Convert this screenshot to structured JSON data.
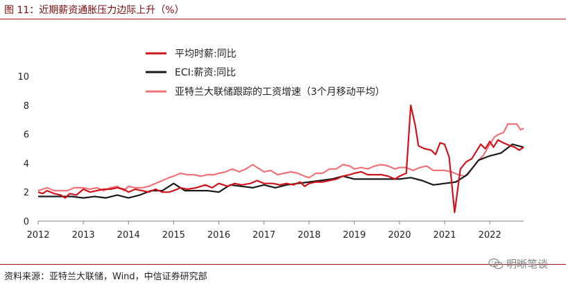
{
  "header": {
    "title": "图 11：近期薪资通胀压力边际上升（%）"
  },
  "footer": {
    "source": "资料来源：亚特兰大联储，Wind，中信证券研究部"
  },
  "watermark": {
    "text": "明晰笔谈",
    "icon": "wechat-icon"
  },
  "colors": {
    "rule": "#9b1b1b",
    "series1": "#d0121b",
    "series2": "#1a1a1a",
    "series3": "#f2707a"
  },
  "chart_data": {
    "type": "line",
    "title": "",
    "xlabel": "",
    "ylabel": "",
    "xlim": [
      2012.0,
      2022.75
    ],
    "ylim": [
      0,
      10
    ],
    "yticks": [
      0,
      2,
      4,
      6,
      8,
      10
    ],
    "xticks": [
      "2012",
      "2013",
      "2014",
      "2015",
      "2016",
      "2017",
      "2018",
      "2019",
      "2020",
      "2021",
      "2022"
    ],
    "grid": false,
    "legend_position": "top-left",
    "series": [
      {
        "name": "平均时薪:同比",
        "color": "#d0121b",
        "points": [
          [
            2012.0,
            2.0
          ],
          [
            2012.1,
            1.9
          ],
          [
            2012.2,
            2.1
          ],
          [
            2012.35,
            1.9
          ],
          [
            2012.5,
            1.8
          ],
          [
            2012.6,
            1.6
          ],
          [
            2012.7,
            1.9
          ],
          [
            2012.85,
            1.8
          ],
          [
            2013.0,
            2.2
          ],
          [
            2013.15,
            2.0
          ],
          [
            2013.3,
            2.1
          ],
          [
            2013.45,
            2.2
          ],
          [
            2013.6,
            2.2
          ],
          [
            2013.75,
            2.3
          ],
          [
            2013.9,
            2.2
          ],
          [
            2014.0,
            2.0
          ],
          [
            2014.15,
            2.2
          ],
          [
            2014.3,
            2.1
          ],
          [
            2014.45,
            2.0
          ],
          [
            2014.6,
            2.2
          ],
          [
            2014.75,
            2.0
          ],
          [
            2014.9,
            2.0
          ],
          [
            2015.0,
            2.1
          ],
          [
            2015.15,
            2.3
          ],
          [
            2015.3,
            2.2
          ],
          [
            2015.5,
            2.3
          ],
          [
            2015.7,
            2.5
          ],
          [
            2015.85,
            2.3
          ],
          [
            2016.0,
            2.6
          ],
          [
            2016.2,
            2.4
          ],
          [
            2016.35,
            2.6
          ],
          [
            2016.5,
            2.5
          ],
          [
            2016.7,
            2.6
          ],
          [
            2016.85,
            2.8
          ],
          [
            2017.0,
            2.6
          ],
          [
            2017.2,
            2.6
          ],
          [
            2017.35,
            2.5
          ],
          [
            2017.5,
            2.6
          ],
          [
            2017.65,
            2.5
          ],
          [
            2017.8,
            2.7
          ],
          [
            2017.9,
            2.4
          ],
          [
            2018.0,
            2.6
          ],
          [
            2018.15,
            2.7
          ],
          [
            2018.3,
            2.7
          ],
          [
            2018.45,
            2.8
          ],
          [
            2018.6,
            2.9
          ],
          [
            2018.75,
            3.1
          ],
          [
            2018.9,
            3.2
          ],
          [
            2019.0,
            3.3
          ],
          [
            2019.15,
            3.4
          ],
          [
            2019.3,
            3.2
          ],
          [
            2019.45,
            3.2
          ],
          [
            2019.6,
            3.2
          ],
          [
            2019.75,
            3.1
          ],
          [
            2019.9,
            2.9
          ],
          [
            2020.0,
            3.1
          ],
          [
            2020.15,
            3.3
          ],
          [
            2020.25,
            8.0
          ],
          [
            2020.35,
            6.6
          ],
          [
            2020.42,
            5.2
          ],
          [
            2020.55,
            5.0
          ],
          [
            2020.7,
            4.9
          ],
          [
            2020.8,
            4.6
          ],
          [
            2020.9,
            5.4
          ],
          [
            2021.0,
            5.3
          ],
          [
            2021.1,
            4.4
          ],
          [
            2021.22,
            0.6
          ],
          [
            2021.35,
            3.6
          ],
          [
            2021.48,
            4.1
          ],
          [
            2021.6,
            4.3
          ],
          [
            2021.72,
            4.9
          ],
          [
            2021.8,
            5.3
          ],
          [
            2021.9,
            5.0
          ],
          [
            2022.0,
            5.5
          ],
          [
            2022.08,
            5.1
          ],
          [
            2022.18,
            5.6
          ],
          [
            2022.3,
            5.4
          ],
          [
            2022.45,
            5.2
          ],
          [
            2022.55,
            5.1
          ],
          [
            2022.65,
            4.9
          ],
          [
            2022.75,
            5.1
          ]
        ]
      },
      {
        "name": "ECI:薪资:同比",
        "color": "#1a1a1a",
        "points": [
          [
            2012.0,
            1.7
          ],
          [
            2012.25,
            1.7
          ],
          [
            2012.5,
            1.7
          ],
          [
            2012.75,
            1.7
          ],
          [
            2013.0,
            1.6
          ],
          [
            2013.25,
            1.7
          ],
          [
            2013.5,
            1.6
          ],
          [
            2013.75,
            1.8
          ],
          [
            2014.0,
            1.6
          ],
          [
            2014.25,
            1.8
          ],
          [
            2014.5,
            2.1
          ],
          [
            2014.75,
            2.1
          ],
          [
            2015.0,
            2.6
          ],
          [
            2015.25,
            2.1
          ],
          [
            2015.5,
            2.1
          ],
          [
            2015.75,
            2.1
          ],
          [
            2016.0,
            2.0
          ],
          [
            2016.25,
            2.5
          ],
          [
            2016.5,
            2.4
          ],
          [
            2016.75,
            2.3
          ],
          [
            2017.0,
            2.5
          ],
          [
            2017.25,
            2.3
          ],
          [
            2017.5,
            2.5
          ],
          [
            2017.75,
            2.6
          ],
          [
            2018.0,
            2.7
          ],
          [
            2018.25,
            2.8
          ],
          [
            2018.5,
            2.9
          ],
          [
            2018.75,
            3.1
          ],
          [
            2019.0,
            2.9
          ],
          [
            2019.25,
            2.9
          ],
          [
            2019.5,
            2.9
          ],
          [
            2019.75,
            2.9
          ],
          [
            2020.0,
            2.9
          ],
          [
            2020.25,
            3.0
          ],
          [
            2020.5,
            2.8
          ],
          [
            2020.75,
            2.5
          ],
          [
            2021.0,
            2.6
          ],
          [
            2021.25,
            2.7
          ],
          [
            2021.5,
            3.2
          ],
          [
            2021.75,
            4.2
          ],
          [
            2022.0,
            4.5
          ],
          [
            2022.25,
            4.7
          ],
          [
            2022.5,
            5.3
          ],
          [
            2022.75,
            5.1
          ]
        ]
      },
      {
        "name": "亚特兰大联储跟踪的工资增速（3个月移动平均）",
        "color": "#f2707a",
        "points": [
          [
            2012.0,
            2.1
          ],
          [
            2012.1,
            2.2
          ],
          [
            2012.2,
            2.3
          ],
          [
            2012.35,
            2.1
          ],
          [
            2012.5,
            2.1
          ],
          [
            2012.65,
            2.1
          ],
          [
            2012.8,
            2.3
          ],
          [
            2013.0,
            2.3
          ],
          [
            2013.15,
            2.2
          ],
          [
            2013.3,
            2.3
          ],
          [
            2013.45,
            2.1
          ],
          [
            2013.6,
            2.3
          ],
          [
            2013.75,
            2.4
          ],
          [
            2013.9,
            2.1
          ],
          [
            2014.0,
            2.4
          ],
          [
            2014.15,
            2.3
          ],
          [
            2014.3,
            2.3
          ],
          [
            2014.45,
            2.4
          ],
          [
            2014.6,
            2.6
          ],
          [
            2014.75,
            2.8
          ],
          [
            2014.9,
            3.0
          ],
          [
            2015.0,
            3.1
          ],
          [
            2015.15,
            3.3
          ],
          [
            2015.3,
            3.2
          ],
          [
            2015.45,
            3.2
          ],
          [
            2015.6,
            3.1
          ],
          [
            2015.75,
            3.2
          ],
          [
            2015.9,
            3.2
          ],
          [
            2016.0,
            3.3
          ],
          [
            2016.15,
            3.4
          ],
          [
            2016.3,
            3.6
          ],
          [
            2016.45,
            3.4
          ],
          [
            2016.6,
            3.6
          ],
          [
            2016.75,
            3.9
          ],
          [
            2016.9,
            3.6
          ],
          [
            2017.0,
            3.4
          ],
          [
            2017.15,
            3.5
          ],
          [
            2017.3,
            3.2
          ],
          [
            2017.45,
            3.3
          ],
          [
            2017.6,
            3.4
          ],
          [
            2017.75,
            3.3
          ],
          [
            2017.9,
            3.1
          ],
          [
            2018.0,
            3.0
          ],
          [
            2018.15,
            3.3
          ],
          [
            2018.3,
            3.3
          ],
          [
            2018.45,
            3.6
          ],
          [
            2018.6,
            3.6
          ],
          [
            2018.75,
            3.9
          ],
          [
            2018.9,
            3.8
          ],
          [
            2019.0,
            3.6
          ],
          [
            2019.15,
            3.7
          ],
          [
            2019.3,
            3.6
          ],
          [
            2019.45,
            3.8
          ],
          [
            2019.6,
            3.9
          ],
          [
            2019.75,
            3.8
          ],
          [
            2019.9,
            3.6
          ],
          [
            2020.0,
            3.7
          ],
          [
            2020.15,
            3.7
          ],
          [
            2020.3,
            3.5
          ],
          [
            2020.45,
            3.7
          ],
          [
            2020.6,
            3.8
          ],
          [
            2020.75,
            3.5
          ],
          [
            2020.9,
            3.5
          ],
          [
            2021.0,
            3.5
          ],
          [
            2021.15,
            3.4
          ],
          [
            2021.3,
            3.2
          ],
          [
            2021.45,
            3.1
          ],
          [
            2021.6,
            3.6
          ],
          [
            2021.75,
            4.2
          ],
          [
            2021.85,
            4.5
          ],
          [
            2022.0,
            5.3
          ],
          [
            2022.1,
            5.8
          ],
          [
            2022.2,
            6.0
          ],
          [
            2022.3,
            6.1
          ],
          [
            2022.4,
            6.7
          ],
          [
            2022.5,
            6.7
          ],
          [
            2022.6,
            6.7
          ],
          [
            2022.68,
            6.3
          ],
          [
            2022.75,
            6.4
          ]
        ]
      }
    ]
  }
}
